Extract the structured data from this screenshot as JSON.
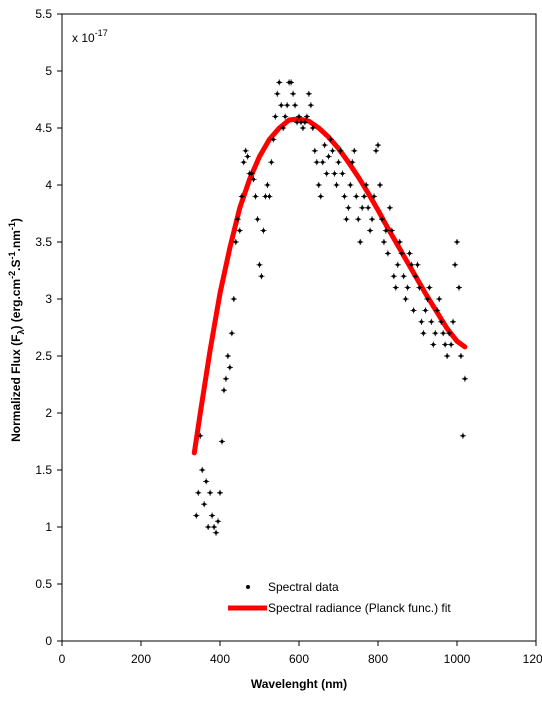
{
  "chart_data": {
    "type": "scatter",
    "xlabel": "Wavelenght (nm)",
    "ylabel": {
      "main": "Normalized Flux (F",
      "sub": "λ",
      "mid": ") (erg.cm",
      "exp1": "-2",
      "s": ".S",
      "exp2": "-1",
      "nm": ".nm",
      "exp3": "-1",
      "end": ")"
    },
    "multiplier": {
      "base": "x 10",
      "exponent": "-17"
    },
    "xlim": [
      0,
      1200
    ],
    "ylim": [
      0,
      5.5
    ],
    "xticks": [
      "0",
      "200",
      "400",
      "600",
      "800",
      "1000",
      "1200"
    ],
    "yticks": [
      "0",
      "0.5",
      "1",
      "1.5",
      "2",
      "2.5",
      "3",
      "3.5",
      "4",
      "4.5",
      "5",
      "5.5"
    ],
    "xtick_values": [
      0,
      200,
      400,
      600,
      800,
      1000,
      1200
    ],
    "ytick_values": [
      0,
      0.5,
      1,
      1.5,
      2,
      2.5,
      3,
      3.5,
      4,
      4.5,
      5,
      5.5
    ],
    "legend": {
      "position": "bottom-center",
      "entries": [
        "Spectral data",
        "Spectral radiance (Planck func.) fit"
      ]
    },
    "series": [
      {
        "name": "Spectral data",
        "kind": "scatter",
        "color": "#000000",
        "x": [
          340,
          345,
          350,
          355,
          360,
          365,
          370,
          375,
          380,
          385,
          390,
          395,
          400,
          405,
          410,
          415,
          420,
          425,
          430,
          435,
          440,
          445,
          450,
          455,
          460,
          465,
          470,
          475,
          480,
          485,
          490,
          495,
          500,
          505,
          510,
          515,
          520,
          525,
          530,
          535,
          540,
          545,
          550,
          555,
          560,
          565,
          570,
          575,
          580,
          585,
          590,
          595,
          600,
          605,
          610,
          615,
          620,
          625,
          630,
          635,
          640,
          645,
          650,
          655,
          660,
          665,
          670,
          675,
          680,
          685,
          690,
          695,
          700,
          705,
          710,
          715,
          720,
          725,
          730,
          735,
          740,
          745,
          750,
          755,
          760,
          765,
          770,
          775,
          780,
          785,
          790,
          795,
          800,
          805,
          810,
          815,
          820,
          825,
          830,
          835,
          840,
          845,
          850,
          855,
          860,
          865,
          870,
          875,
          880,
          885,
          890,
          895,
          900,
          905,
          910,
          915,
          920,
          925,
          930,
          935,
          940,
          945,
          950,
          955,
          960,
          965,
          970,
          975,
          980,
          985,
          990,
          995,
          1000,
          1005,
          1010,
          1015,
          1020
        ],
        "y": [
          1.1,
          1.3,
          1.8,
          1.5,
          1.2,
          1.4,
          1.0,
          1.3,
          1.1,
          1.0,
          0.95,
          1.05,
          1.3,
          1.75,
          2.2,
          2.3,
          2.5,
          2.4,
          2.7,
          3.0,
          3.5,
          3.7,
          3.6,
          3.9,
          4.2,
          4.3,
          4.25,
          4.1,
          4.1,
          4.05,
          3.9,
          3.7,
          3.3,
          3.2,
          3.6,
          3.9,
          4.0,
          3.9,
          4.2,
          4.4,
          4.6,
          4.8,
          4.9,
          4.7,
          4.5,
          4.6,
          4.7,
          4.9,
          4.9,
          4.8,
          4.7,
          4.55,
          4.6,
          4.55,
          4.5,
          4.55,
          4.6,
          4.8,
          4.7,
          4.5,
          4.3,
          4.2,
          4.0,
          3.9,
          4.2,
          4.35,
          4.1,
          4.25,
          4.4,
          4.3,
          4.1,
          4.0,
          4.2,
          4.3,
          4.1,
          3.9,
          3.7,
          3.8,
          4.0,
          4.2,
          4.3,
          3.9,
          3.7,
          3.5,
          3.8,
          3.9,
          4.0,
          3.8,
          3.6,
          3.7,
          3.9,
          4.3,
          4.35,
          4.0,
          3.7,
          3.5,
          3.6,
          3.4,
          3.8,
          3.6,
          3.2,
          3.1,
          3.3,
          3.5,
          3.4,
          3.2,
          3.0,
          3.1,
          3.4,
          3.3,
          2.9,
          3.2,
          3.3,
          3.1,
          2.8,
          2.7,
          2.9,
          3.0,
          3.1,
          2.8,
          2.6,
          2.7,
          2.9,
          3.0,
          2.8,
          2.7,
          2.6,
          2.5,
          2.7,
          2.6,
          2.8,
          3.3,
          3.5,
          3.1,
          2.5,
          1.8,
          2.3
        ]
      },
      {
        "name": "Spectral radiance (Planck func.) fit",
        "kind": "line",
        "color": "#ff0000",
        "x": [
          335,
          350,
          375,
          400,
          425,
          450,
          475,
          500,
          525,
          550,
          575,
          600,
          625,
          650,
          675,
          700,
          725,
          750,
          775,
          800,
          825,
          850,
          875,
          900,
          925,
          950,
          975,
          1000,
          1020
        ],
        "y": [
          1.65,
          2.0,
          2.55,
          3.05,
          3.45,
          3.8,
          4.05,
          4.25,
          4.4,
          4.5,
          4.57,
          4.58,
          4.56,
          4.5,
          4.42,
          4.32,
          4.2,
          4.07,
          3.93,
          3.78,
          3.62,
          3.47,
          3.32,
          3.17,
          3.02,
          2.88,
          2.74,
          2.63,
          2.58
        ]
      }
    ]
  }
}
